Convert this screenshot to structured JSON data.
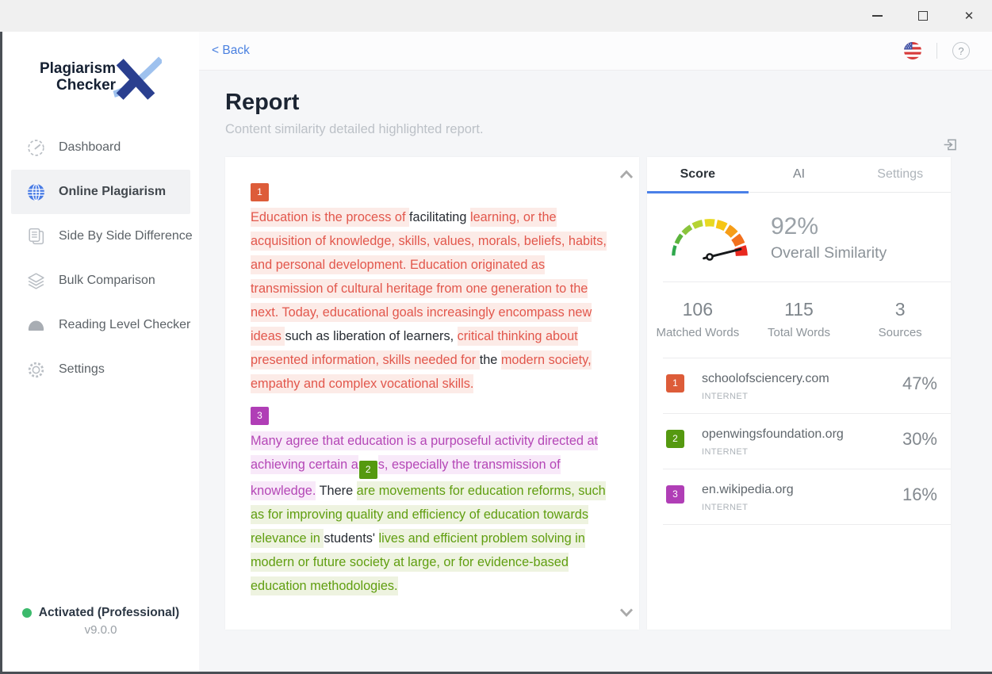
{
  "titlebar": {
    "close_glyph": "✕"
  },
  "topbar": {
    "back": "< Back",
    "help_glyph": "?"
  },
  "sidebar": {
    "logo_line1": "Plagiarism",
    "logo_line2": "Checker",
    "items": [
      {
        "label": "Dashboard",
        "active": false
      },
      {
        "label": "Online Plagiarism",
        "active": true
      },
      {
        "label": "Side By Side Difference",
        "active": false
      },
      {
        "label": "Bulk Comparison",
        "active": false
      },
      {
        "label": "Reading Level Checker",
        "active": false
      },
      {
        "label": "Settings",
        "active": false
      }
    ],
    "status_label": "Activated (Professional)",
    "version": "v9.0.0"
  },
  "header": {
    "title": "Report",
    "subtitle": "Content similarity detailed highlighted report."
  },
  "document": {
    "paragraphs": [
      {
        "badge": "1",
        "segments": [
          {
            "t": "Education is the process of ",
            "c": "m1"
          },
          {
            "t": "facilitating ",
            "c": "plain"
          },
          {
            "t": "learning, or the acquisition of knowledge, skills, values, morals, beliefs, habits, and personal development. Education originated as transmission of cultural heritage from one generation to the next. Today, educational goals increasingly encompass new ideas ",
            "c": "m1"
          },
          {
            "t": "such as liberation of learners, ",
            "c": "plain"
          },
          {
            "t": "critical thinking about presented information, skills needed for ",
            "c": "m1"
          },
          {
            "t": "the ",
            "c": "plain"
          },
          {
            "t": "modern society, empathy and complex vocational skills.",
            "c": "m1"
          }
        ]
      },
      {
        "badge": "3",
        "segments": [
          {
            "t": "Many agree that education is a purposeful activity directed at achieving certain a",
            "c": "m3"
          },
          {
            "t": "2",
            "c": "b2"
          },
          {
            "t": "s, especially the transmission of knowledge.",
            "c": "m3"
          },
          {
            "t": " There ",
            "c": "plain"
          },
          {
            "t": "are movements for education reforms, such as for improving quality and efficiency of education towards relevance in ",
            "c": "m2"
          },
          {
            "t": "students' ",
            "c": "plain"
          },
          {
            "t": "lives and efficient problem solving in modern or future society at large, or for evidence-based education methodologies.",
            "c": "m2"
          }
        ]
      }
    ]
  },
  "score_panel": {
    "tabs": [
      "Score",
      "AI",
      "Settings"
    ],
    "similarity_value": "92%",
    "similarity_label": "Overall Similarity",
    "stats": [
      {
        "value": "106",
        "label": "Matched Words"
      },
      {
        "value": "115",
        "label": "Total Words"
      },
      {
        "value": "3",
        "label": "Sources"
      }
    ],
    "sources": [
      {
        "num": "1",
        "name": "schoolofsciencery.com",
        "type": "INTERNET",
        "percent": "47%",
        "color": "#dd5c39"
      },
      {
        "num": "2",
        "name": "openwingsfoundation.org",
        "type": "INTERNET",
        "percent": "30%",
        "color": "#559910"
      },
      {
        "num": "3",
        "name": "en.wikipedia.org",
        "type": "INTERNET",
        "percent": "16%",
        "color": "#b03eb6"
      }
    ],
    "gauge": {
      "colors": [
        "#2fa84c",
        "#5cb43c",
        "#8ac43c",
        "#b5d333",
        "#e8d921",
        "#f6c514",
        "#f69d17",
        "#f2701d",
        "#e8281e"
      ],
      "widths": [
        5,
        6.5,
        8,
        9.5,
        11,
        12.5,
        14,
        15.5,
        17.5
      ],
      "needle_deg": 14
    }
  },
  "colors": {
    "accent_blue": "#4a80e8",
    "match_red": "#e2574c",
    "match_green": "#5f9e10",
    "match_purple": "#b446b6",
    "status_green": "#3cba6c"
  }
}
